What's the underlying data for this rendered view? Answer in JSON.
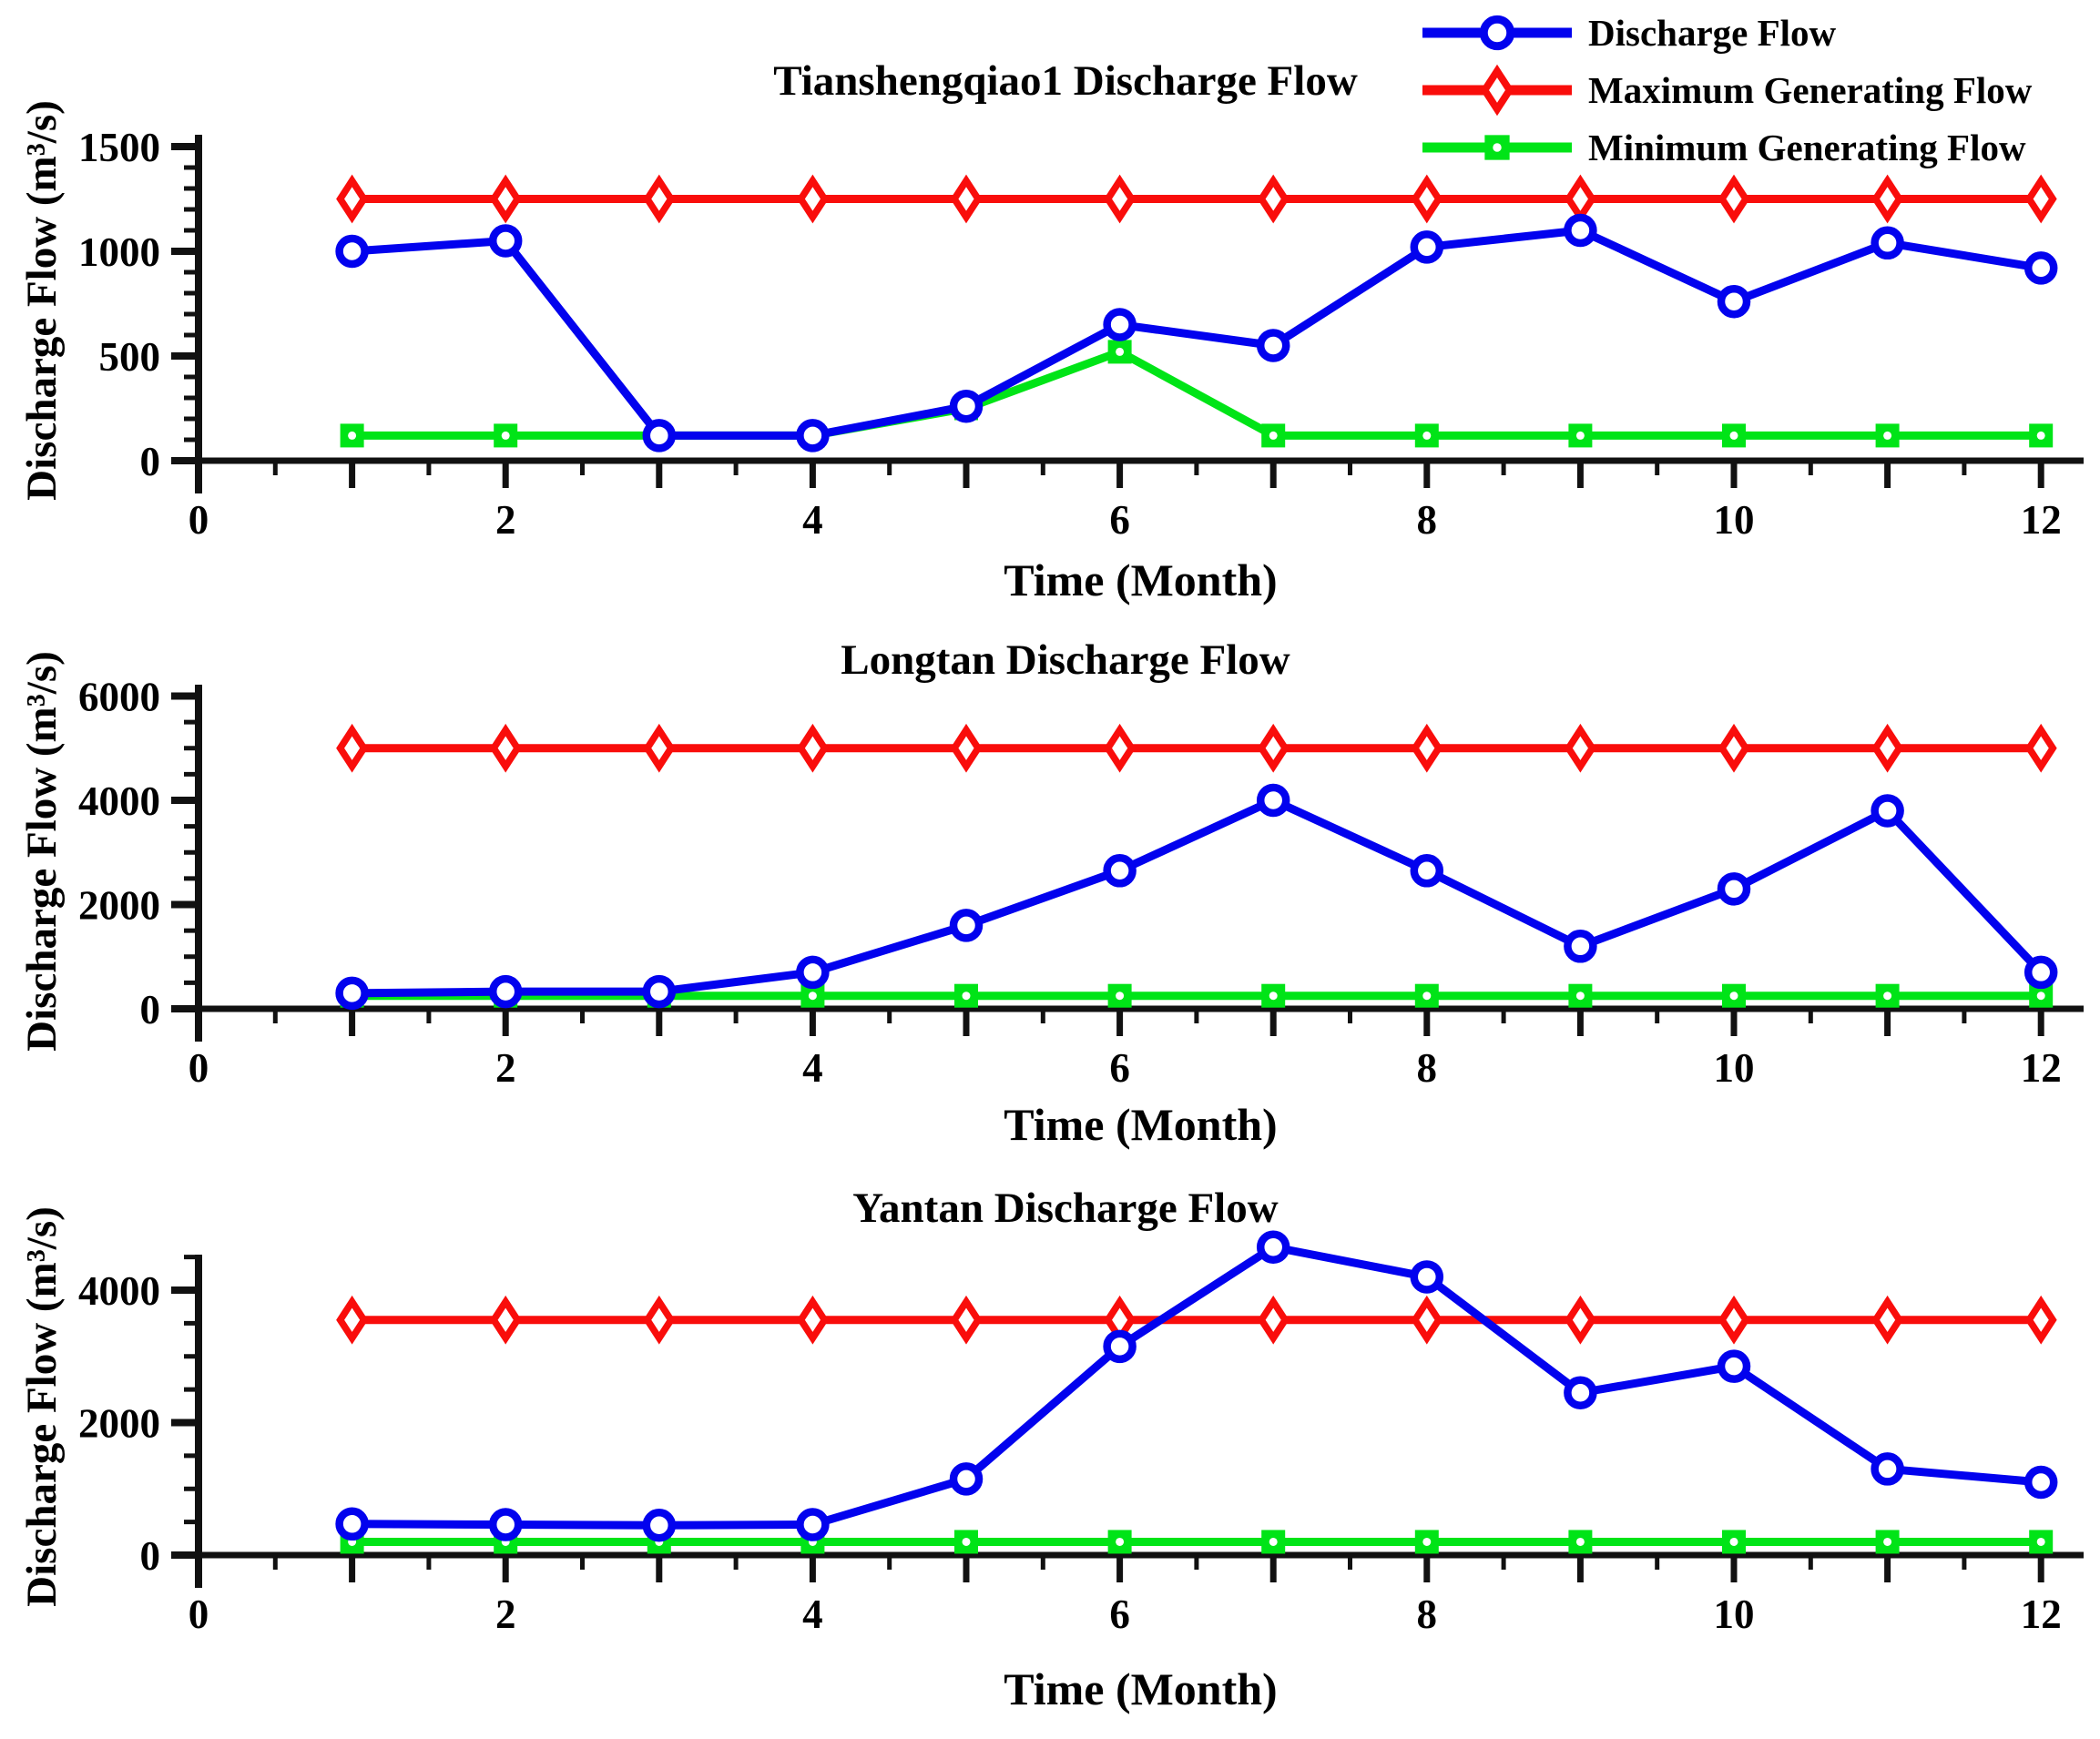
{
  "figure": {
    "background": "#ffffff"
  },
  "legend": {
    "position": "top-right",
    "items": [
      {
        "label": "Discharge Flow",
        "color": "#0202ee",
        "marker": "circle"
      },
      {
        "label": "Maximum Generating Flow",
        "color": "#f90d0b",
        "marker": "diamond"
      },
      {
        "label": "Minimum Generating Flow",
        "color": "#00e417",
        "marker": "square"
      }
    ]
  },
  "chart_data": [
    {
      "type": "line",
      "title": "Tianshengqiao1 Discharge Flow",
      "xlabel": "Time (Month)",
      "ylabel": "Discharge Flow (m³/s)",
      "x": [
        1,
        2,
        3,
        4,
        5,
        6,
        7,
        8,
        9,
        10,
        11,
        12
      ],
      "xticks": [
        0,
        2,
        4,
        6,
        8,
        10,
        12
      ],
      "xlim": [
        0,
        12
      ],
      "ylim": [
        0,
        1500
      ],
      "yticks": [
        0,
        500,
        1000,
        1500
      ],
      "ytick_minor_step": 100,
      "grid": false,
      "series": [
        {
          "name": "Discharge Flow",
          "values": [
            1000,
            1050,
            120,
            120,
            260,
            650,
            550,
            1020,
            1100,
            760,
            1040,
            920
          ]
        },
        {
          "name": "Maximum Generating Flow",
          "values": [
            1250,
            1250,
            1250,
            1250,
            1250,
            1250,
            1250,
            1250,
            1250,
            1250,
            1250,
            1250
          ]
        },
        {
          "name": "Minimum Generating Flow",
          "values": [
            120,
            120,
            120,
            120,
            250,
            520,
            120,
            120,
            120,
            120,
            120,
            120
          ]
        }
      ]
    },
    {
      "type": "line",
      "title": "Longtan Discharge Flow",
      "xlabel": "Time (Month)",
      "ylabel": "Discharge Flow (m³/s)",
      "x": [
        1,
        2,
        3,
        4,
        5,
        6,
        7,
        8,
        9,
        10,
        11,
        12
      ],
      "xticks": [
        0,
        2,
        4,
        6,
        8,
        10,
        12
      ],
      "xlim": [
        0,
        12
      ],
      "ylim": [
        0,
        6000
      ],
      "yticks": [
        0,
        2000,
        4000,
        6000
      ],
      "ytick_minor_step": 500,
      "grid": false,
      "series": [
        {
          "name": "Discharge Flow",
          "values": [
            300,
            330,
            330,
            700,
            1600,
            2650,
            4000,
            2650,
            1200,
            2300,
            3800,
            700
          ]
        },
        {
          "name": "Maximum Generating Flow",
          "values": [
            5000,
            5000,
            5000,
            5000,
            5000,
            5000,
            5000,
            5000,
            5000,
            5000,
            5000,
            5000
          ]
        },
        {
          "name": "Minimum Generating Flow",
          "values": [
            250,
            250,
            250,
            250,
            250,
            250,
            250,
            250,
            250,
            250,
            250,
            250
          ]
        }
      ]
    },
    {
      "type": "line",
      "title": "Yantan Discharge Flow",
      "xlabel": "Time (Month)",
      "ylabel": "Discharge Flow (m³/s)",
      "x": [
        1,
        2,
        3,
        4,
        5,
        6,
        7,
        8,
        9,
        10,
        11,
        12
      ],
      "xticks": [
        0,
        2,
        4,
        6,
        8,
        10,
        12
      ],
      "xlim": [
        0,
        12
      ],
      "ylim": [
        0,
        4000
      ],
      "yticks": [
        0,
        2000,
        4000
      ],
      "ytick_minor_step": 500,
      "grid": false,
      "series": [
        {
          "name": "Discharge Flow",
          "values": [
            470,
            460,
            450,
            460,
            1150,
            3150,
            4650,
            4200,
            2450,
            2850,
            1300,
            1100
          ]
        },
        {
          "name": "Maximum Generating Flow",
          "values": [
            3550,
            3550,
            3550,
            3550,
            3550,
            3550,
            3550,
            3550,
            3550,
            3550,
            3550,
            3550
          ]
        },
        {
          "name": "Minimum Generating Flow",
          "values": [
            200,
            200,
            200,
            200,
            200,
            200,
            200,
            200,
            200,
            200,
            200,
            200
          ]
        }
      ]
    }
  ]
}
